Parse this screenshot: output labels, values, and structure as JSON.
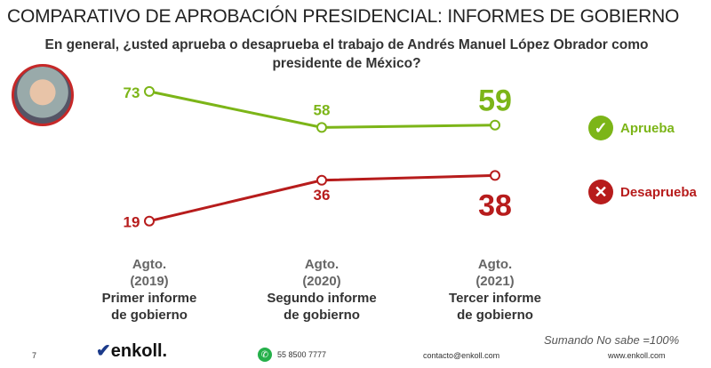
{
  "title": "COMPARATIVO DE APROBACIÓN PRESIDENCIAL: INFORMES DE GOBIERNO",
  "question": "En general, ¿usted aprueba o desaprueba el trabajo de Andrés Manuel López Obrador como presidente de México?",
  "chart_data": {
    "type": "line",
    "categories": [
      {
        "month": "Agto.",
        "year": "(2019)",
        "line1": "Primer informe",
        "line2": "de gobierno"
      },
      {
        "month": "Agto.",
        "year": "(2020)",
        "line1": "Segundo informe",
        "line2": "de gobierno"
      },
      {
        "month": "Agto.",
        "year": "(2021)",
        "line1": "Tercer informe",
        "line2": "de gobierno"
      }
    ],
    "series": [
      {
        "name": "Aprueba",
        "values": [
          73,
          58,
          59
        ],
        "color": "#7cb518",
        "icon": "check-icon"
      },
      {
        "name": "Desaprueba",
        "values": [
          19,
          36,
          38
        ],
        "color": "#b71c1c",
        "icon": "x-icon"
      }
    ],
    "grid": false,
    "legend": "right"
  },
  "footer": {
    "page": "7",
    "brand": "enkoll.",
    "phone": "55 8500 7777",
    "email": "contacto@enkoll.com",
    "web": "www.enkoll.com",
    "note": "Sumando No sabe =100%"
  }
}
